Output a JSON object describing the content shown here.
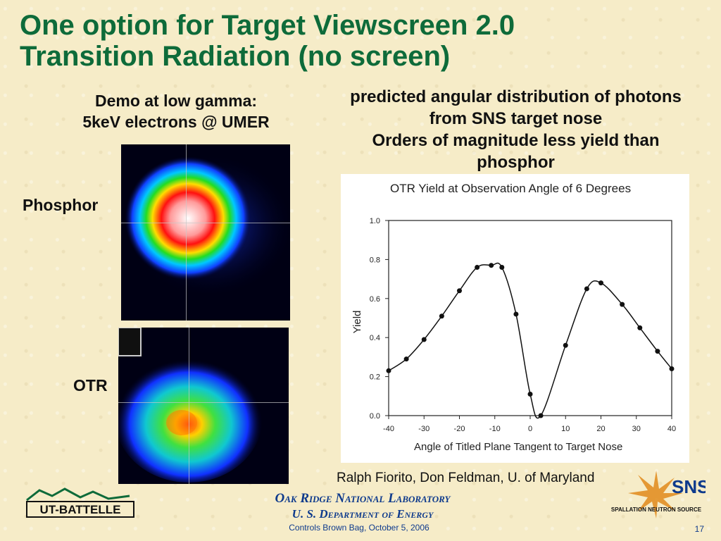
{
  "slide": {
    "title_line1": "One option for Target Viewscreen 2.0",
    "title_line2": "Transition Radiation (no screen)",
    "demo_line1": "Demo at low gamma:",
    "demo_line2": "5keV electrons @ UMER",
    "pred_line1": "predicted angular distribution of photons",
    "pred_line2": "from SNS target nose",
    "pred_line3": "Orders of magnitude less yield than",
    "pred_line4": "phosphor",
    "label_phosphor": "Phosphor",
    "label_otr": "OTR",
    "credit": "Ralph Fiorito, Don Feldman, U. of Maryland",
    "org_line1": "Oak Ridge National Laboratory",
    "org_line2": "U. S. Department of Energy",
    "footer": "Controls Brown Bag, October 5, 2006",
    "page_number": "17",
    "logo_left_text": "UT-BATTELLE",
    "logo_right_text": "SNS",
    "logo_right_subtext": "SPALLATION NEUTRON SOURCE"
  },
  "colors": {
    "title": "#0e6b3a",
    "org_text": "#0e3a8c",
    "logo_accent": "#e08a1a"
  },
  "chart_data": {
    "type": "line",
    "title": "OTR Yield at Observation Angle of  6 Degrees",
    "xlabel": "Angle of Titled Plane Tangent to Target Nose",
    "ylabel": "Yield",
    "xlim": [
      -40,
      40
    ],
    "ylim": [
      0.0,
      1.0
    ],
    "xticks": [
      -40,
      -30,
      -20,
      -10,
      0,
      10,
      20,
      30,
      40
    ],
    "yticks": [
      0.0,
      0.2,
      0.4,
      0.6,
      0.8,
      1.0
    ],
    "series": [
      {
        "x": [
          -40,
          -35,
          -30,
          -25,
          -20,
          -15,
          -11,
          -8,
          -4,
          0,
          3,
          10,
          16,
          20,
          26,
          31,
          36,
          40
        ],
        "y": [
          0.23,
          0.29,
          0.39,
          0.51,
          0.64,
          0.76,
          0.77,
          0.76,
          0.52,
          0.11,
          0.0,
          0.36,
          0.65,
          0.68,
          0.57,
          0.45,
          0.33,
          0.24
        ]
      }
    ]
  }
}
